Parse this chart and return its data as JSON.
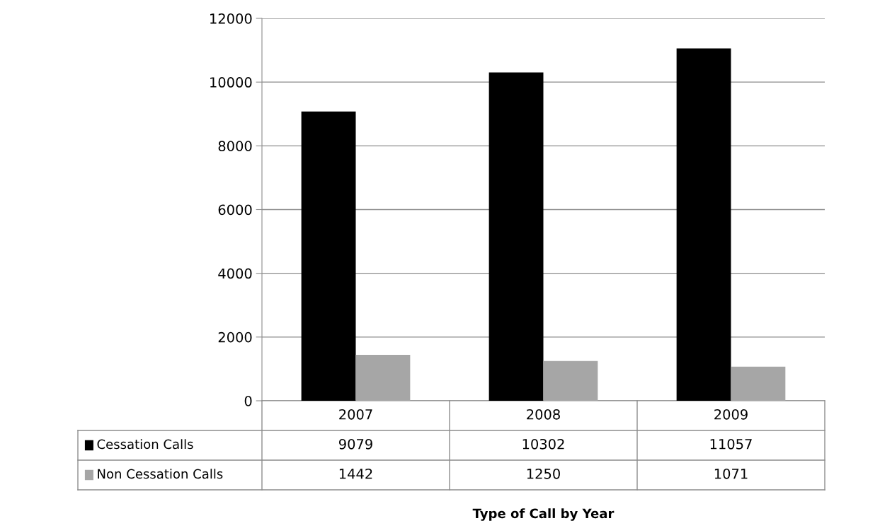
{
  "chart_data": {
    "type": "bar",
    "annotations": [
      "Type of Call by Year"
    ],
    "categories": [
      "2007",
      "2008",
      "2009"
    ],
    "series": [
      {
        "name": "Cessation Calls",
        "color": "#000000",
        "values": [
          9079,
          10302,
          11057
        ]
      },
      {
        "name": "Non Cessation Calls",
        "color": "#a6a6a6",
        "values": [
          1442,
          1250,
          1071
        ]
      }
    ],
    "ylim": [
      0,
      12000
    ],
    "yticks": [
      0,
      2000,
      4000,
      6000,
      8000,
      10000,
      12000
    ],
    "grid": "y",
    "legend": "bottom",
    "data_labels": true
  }
}
